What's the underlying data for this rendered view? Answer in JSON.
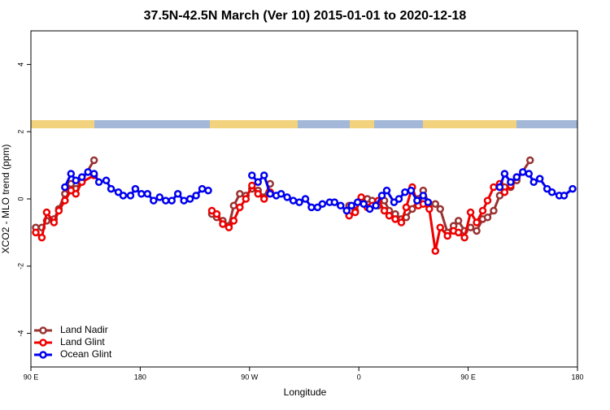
{
  "chart_data": {
    "type": "line",
    "title": "37.5N-42.5N March (Ver 10)   2015-01-01 to 2020-12-18",
    "xlabel": "Longitude",
    "ylabel": "XCO2 - MLO trend (ppm)",
    "xlim": [
      90,
      540
    ],
    "ylim": [
      -5,
      5
    ],
    "xticks": [
      {
        "value": 90,
        "label": "90 E"
      },
      180,
      {
        "value": 270,
        "label": "90 W"
      },
      {
        "value": 360,
        "label": "0"
      },
      {
        "value": 450,
        "label": "90 E"
      },
      {
        "value": 540,
        "label": "180"
      }
    ],
    "yticks": [
      -4,
      -2,
      0,
      2,
      4
    ],
    "legend": "bottom-left",
    "series": [
      {
        "name": "Land Nadir",
        "color": "#993333",
        "x": [
          94,
          99,
          103,
          109,
          113,
          118,
          123,
          127,
          132,
          142,
          200,
          239,
          243,
          248,
          253,
          257,
          262,
          267,
          272,
          277,
          282,
          287,
          320,
          352,
          357,
          362,
          367,
          371,
          376,
          381,
          385,
          390,
          395,
          399,
          404,
          409,
          413,
          418,
          423,
          427,
          433,
          438,
          442,
          447,
          452,
          457,
          462,
          466,
          471,
          476,
          480,
          485,
          490,
          501
        ],
        "values": [
          -0.85,
          -0.85,
          -0.65,
          -0.6,
          -0.3,
          0.15,
          0.45,
          0.3,
          0.55,
          1.15,
          null,
          -0.45,
          -0.55,
          -0.65,
          -0.8,
          -0.2,
          0.15,
          0.1,
          0.3,
          0.25,
          0.05,
          0.45,
          null,
          -0.2,
          -0.35,
          0.0,
          0.0,
          -0.05,
          -0.2,
          -0.05,
          -0.35,
          -0.45,
          -0.6,
          -0.55,
          -0.3,
          0.0,
          0.25,
          -0.15,
          -0.15,
          -0.3,
          -1.0,
          -0.8,
          -0.65,
          -0.95,
          -0.85,
          -0.95,
          -0.6,
          -0.55,
          -0.35,
          0.1,
          0.35,
          0.35,
          0.55,
          1.15
        ]
      },
      {
        "name": "Land Glint",
        "color": "#ee0000",
        "x": [
          94,
          99,
          103,
          109,
          113,
          118,
          123,
          127,
          132,
          142,
          200,
          239,
          243,
          248,
          253,
          257,
          262,
          267,
          272,
          277,
          282,
          287,
          320,
          352,
          357,
          362,
          367,
          371,
          376,
          381,
          385,
          390,
          395,
          399,
          404,
          409,
          413,
          418,
          423,
          427,
          433,
          438,
          442,
          447,
          452,
          457,
          462,
          466,
          471,
          476,
          480,
          485,
          490
        ],
        "values": [
          -1.0,
          -1.15,
          -0.4,
          -0.7,
          -0.35,
          -0.05,
          0.25,
          0.15,
          0.5,
          0.7,
          null,
          -0.35,
          -0.45,
          -0.75,
          -0.85,
          -0.65,
          -0.25,
          0.0,
          0.4,
          0.15,
          0.0,
          0.2,
          null,
          -0.5,
          -0.4,
          0.05,
          -0.25,
          -0.2,
          -0.05,
          -0.35,
          -0.5,
          -0.6,
          -0.7,
          -0.25,
          0.35,
          -0.2,
          -0.15,
          -0.3,
          -1.55,
          -0.85,
          -1.1,
          -0.95,
          -1.0,
          -1.15,
          -0.4,
          -0.7,
          -0.35,
          -0.05,
          0.35,
          0.45,
          0.2,
          0.4,
          0.65
        ]
      },
      {
        "name": "Ocean Glint",
        "color": "#0000ee",
        "x": [
          118,
          123,
          127,
          132,
          137,
          142,
          146,
          152,
          156,
          162,
          166,
          172,
          176,
          181,
          186,
          191,
          196,
          201,
          206,
          211,
          216,
          221,
          226,
          231,
          236,
          250,
          272,
          277,
          282,
          287,
          292,
          296,
          301,
          306,
          311,
          316,
          321,
          326,
          330,
          336,
          340,
          345,
          350,
          354,
          359,
          364,
          369,
          374,
          379,
          383,
          389,
          393,
          398,
          403,
          408,
          413,
          417,
          450,
          476,
          480,
          485,
          490,
          495,
          500,
          504,
          509,
          515,
          519,
          525,
          529,
          536
        ],
        "values": [
          0.35,
          0.75,
          0.55,
          0.65,
          0.8,
          0.75,
          0.5,
          0.55,
          0.3,
          0.2,
          0.1,
          0.1,
          0.3,
          0.15,
          0.15,
          -0.05,
          0.05,
          -0.05,
          -0.05,
          0.15,
          -0.05,
          0.0,
          0.1,
          0.3,
          0.25,
          null,
          0.7,
          0.5,
          0.7,
          0.15,
          0.1,
          0.15,
          0.05,
          -0.05,
          -0.1,
          0.0,
          -0.25,
          -0.25,
          -0.15,
          -0.1,
          -0.1,
          -0.2,
          -0.35,
          -0.2,
          -0.1,
          -0.15,
          -0.3,
          -0.2,
          0.1,
          0.25,
          -0.1,
          0.0,
          0.2,
          0.25,
          -0.05,
          0.1,
          -0.1,
          null,
          0.35,
          0.75,
          0.5,
          0.65,
          0.8,
          0.75,
          0.5,
          0.6,
          0.3,
          0.2,
          0.1,
          0.1,
          0.3
        ]
      }
    ]
  }
}
